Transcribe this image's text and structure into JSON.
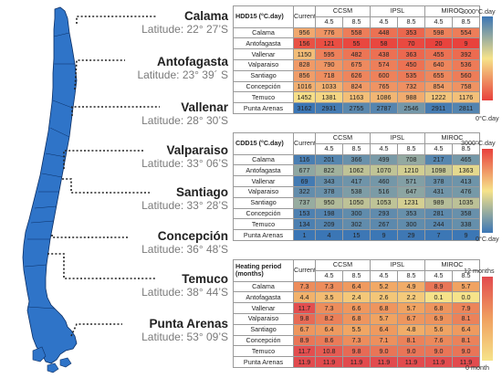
{
  "cities": [
    {
      "name": "Calama",
      "latitude": "Latitude: 22° 27’S"
    },
    {
      "name": "Antofagasta",
      "latitude": "Latitude: 23° 39´ S"
    },
    {
      "name": "Vallenar",
      "latitude": "Latitude: 28° 30’S"
    },
    {
      "name": "Valparaiso",
      "latitude": "Latitude: 33° 06’S"
    },
    {
      "name": "Santiago",
      "latitude": "Latitude: 33° 28’S"
    },
    {
      "name": "Concepción",
      "latitude": "Latitude: 36° 48’S"
    },
    {
      "name": "Temuco",
      "latitude": "Latitude: 38° 44’S"
    },
    {
      "name": "Punta Arenas",
      "latitude": "Latitude: 53° 09’S"
    }
  ],
  "colors": {
    "map_fill": "#2f74c8",
    "map_stroke": "#0b2f66",
    "table_border": "#9a9a9a"
  },
  "chart_data": [
    {
      "type": "heatmap",
      "title": "HDD15 (°C.day)",
      "current_label": "Current",
      "models": [
        "CCSM",
        "IPSL",
        "MIROC"
      ],
      "scenarios": [
        "4.5",
        "8.5",
        "4.5",
        "8.5",
        "4.5",
        "8.5"
      ],
      "rows": [
        "Calama",
        "Antofagasta",
        "Vallenar",
        "Valparaiso",
        "Santiago",
        "Concepción",
        "Temuco",
        "Punta Arenas"
      ],
      "values": [
        [
          956,
          776,
          558,
          448,
          353,
          598,
          554
        ],
        [
          156,
          121,
          55,
          58,
          70,
          20,
          9
        ],
        [
          1150,
          595,
          482,
          438,
          363,
          455,
          392
        ],
        [
          828,
          790,
          675,
          574,
          450,
          640,
          536
        ],
        [
          856,
          718,
          626,
          600,
          535,
          655,
          560
        ],
        [
          1016,
          1033,
          824,
          765,
          732,
          854,
          758
        ],
        [
          1452,
          1381,
          1163,
          1086,
          988,
          1222,
          1176
        ],
        [
          3162,
          2931,
          2755,
          2787,
          2546,
          2911,
          2811
        ]
      ],
      "scale": {
        "min": 0,
        "max": 3000,
        "low_label": "0°C.day",
        "high_label": "3000°C.day",
        "low_color": "#e8413c",
        "mid_color": "#f6e38a",
        "high_color": "#3b76b5"
      }
    },
    {
      "type": "heatmap",
      "title": "CDD15 (°C.day)",
      "current_label": "Current",
      "models": [
        "CCSM",
        "IPSL",
        "MIROC"
      ],
      "scenarios": [
        "4.5",
        "8.5",
        "4.5",
        "8.5",
        "4.5",
        "8.5"
      ],
      "rows": [
        "Calama",
        "Antofagasta",
        "Vallenar",
        "Valparaiso",
        "Santiago",
        "Concepción",
        "Temuco",
        "Punta Arenas"
      ],
      "values": [
        [
          116,
          201,
          366,
          499,
          708,
          217,
          465
        ],
        [
          677,
          822,
          1062,
          1070,
          1210,
          1098,
          1363
        ],
        [
          69,
          343,
          417,
          460,
          571,
          378,
          413
        ],
        [
          322,
          378,
          538,
          516,
          647,
          431,
          476
        ],
        [
          737,
          950,
          1050,
          1053,
          1231,
          989,
          1035
        ],
        [
          153,
          198,
          300,
          293,
          353,
          281,
          358
        ],
        [
          134,
          209,
          302,
          267,
          300,
          244,
          338
        ],
        [
          1,
          4,
          15,
          9,
          29,
          7,
          9
        ]
      ],
      "scale": {
        "min": 0,
        "max": 3000,
        "low_label": "0°C.day",
        "high_label": "3000°C.day",
        "low_color": "#3b76b5",
        "mid_color": "#f6e38a",
        "high_color": "#e8413c"
      }
    },
    {
      "type": "heatmap",
      "title": "Heating period (months)",
      "current_label": "Current",
      "models": [
        "CCSM",
        "IPSL",
        "MIROC"
      ],
      "scenarios": [
        "4.5",
        "8.5",
        "4.5",
        "8.5",
        "4.5",
        "8.5"
      ],
      "rows": [
        "Calama",
        "Antofagasta",
        "Vallenar",
        "Valparaiso",
        "Santiago",
        "Concepción",
        "Temuco",
        "Punta Arenas"
      ],
      "values": [
        [
          7.3,
          7.3,
          6.4,
          5.2,
          4.9,
          8.9,
          5.7
        ],
        [
          4.4,
          3.5,
          2.4,
          2.6,
          2.2,
          0.1,
          0.0
        ],
        [
          11.7,
          7.3,
          6.6,
          6.8,
          5.7,
          6.8,
          7.9
        ],
        [
          9.8,
          8.2,
          6.8,
          5.7,
          6.7,
          6.9,
          8.1
        ],
        [
          6.7,
          6.4,
          5.5,
          6.4,
          4.8,
          5.6,
          6.4
        ],
        [
          8.9,
          8.6,
          7.3,
          7.1,
          8.1,
          7.6,
          8.1
        ],
        [
          11.7,
          10.8,
          9.8,
          9.0,
          9.0,
          9.0,
          9.0
        ],
        [
          11.9,
          11.9,
          11.9,
          11.9,
          11.9,
          11.9,
          11.9
        ]
      ],
      "scale": {
        "min": 0,
        "max": 12,
        "low_label": "0 month",
        "high_label": "12 months",
        "low_color": "#f6e38a",
        "mid_color": "#f0a060",
        "high_color": "#e24a4e"
      }
    }
  ]
}
